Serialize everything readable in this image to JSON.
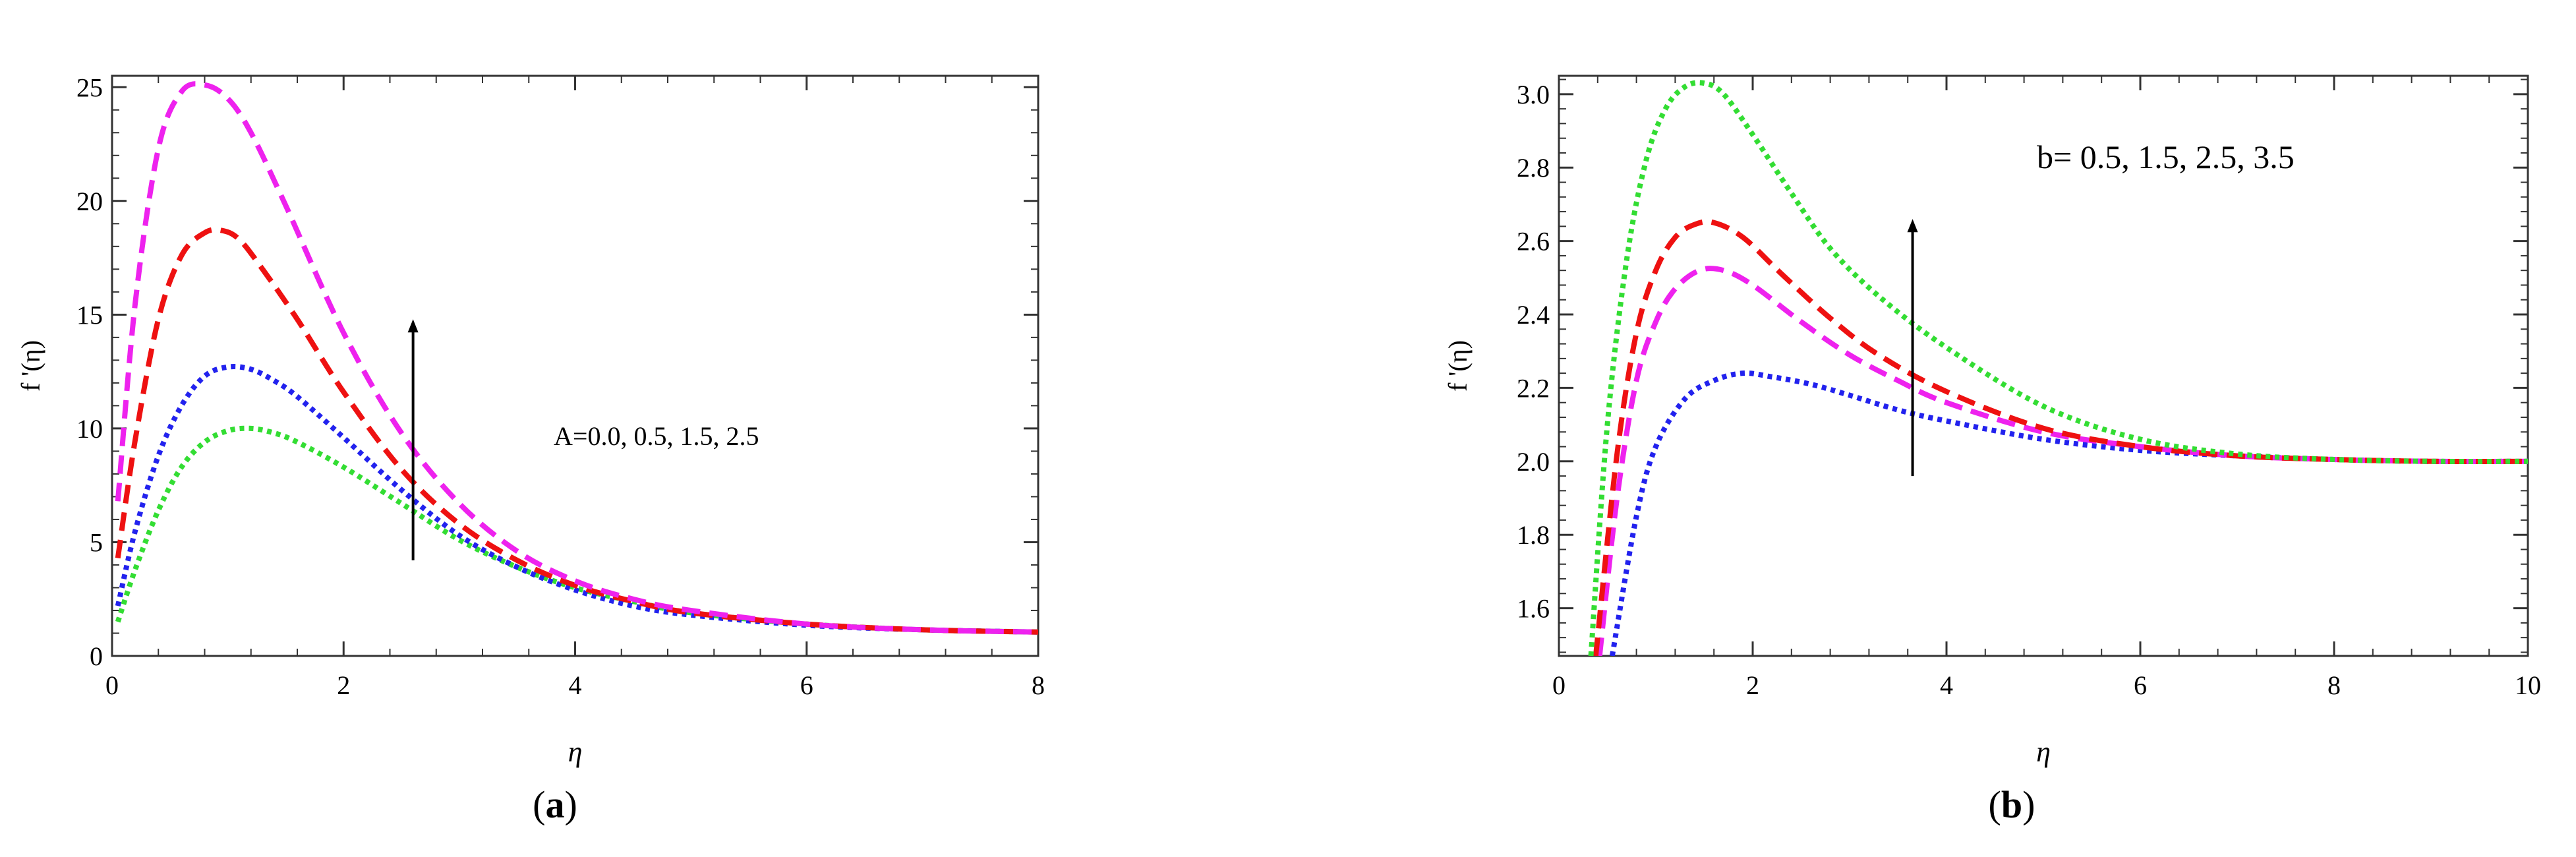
{
  "figure": {
    "panels": [
      {
        "caption_letter": "a",
        "caption_open": "(",
        "caption_close": ")"
      },
      {
        "caption_letter": "b",
        "caption_open": "(",
        "caption_close": ")"
      }
    ]
  },
  "chart_data": [
    {
      "type": "line",
      "title": "",
      "xlabel": "η",
      "ylabel": "f '(η)",
      "xlim": [
        0,
        8
      ],
      "ylim": [
        0,
        25.5
      ],
      "xticks": [
        0,
        2,
        4,
        6,
        8
      ],
      "yticks": [
        0,
        5,
        10,
        15,
        20,
        25
      ],
      "grid": false,
      "annotation": {
        "text": "A=0.0, 0.5, 1.5, 2.5",
        "arrow_x": 2.6,
        "arrow_from": 4.2,
        "arrow_to": 14.8
      },
      "series": [
        {
          "color": "#33dd33",
          "style": "dotted",
          "x": [
            0.05,
            0.2,
            0.4,
            0.6,
            0.8,
            1.0,
            1.2,
            1.4,
            1.6,
            2.0,
            2.5,
            3.0,
            3.5,
            4.0,
            4.5,
            5.0,
            6.0,
            7.0,
            8.0
          ],
          "y": [
            1.5,
            3.8,
            6.4,
            8.3,
            9.4,
            9.9,
            10.0,
            9.8,
            9.4,
            8.3,
            6.7,
            5.1,
            3.9,
            3.0,
            2.4,
            1.9,
            1.4,
            1.15,
            1.05
          ]
        },
        {
          "color": "#2222ee",
          "style": "dotted",
          "x": [
            0.05,
            0.2,
            0.4,
            0.6,
            0.8,
            1.0,
            1.2,
            1.4,
            1.6,
            2.0,
            2.5,
            3.0,
            3.5,
            4.0,
            4.5,
            5.0,
            6.0,
            7.0,
            8.0
          ],
          "y": [
            2.2,
            5.5,
            8.8,
            11.0,
            12.3,
            12.7,
            12.6,
            12.1,
            11.4,
            9.6,
            7.3,
            5.3,
            3.9,
            2.9,
            2.2,
            1.8,
            1.35,
            1.15,
            1.05
          ]
        },
        {
          "color": "#ee1111",
          "style": "dashed",
          "x": [
            0.05,
            0.2,
            0.4,
            0.6,
            0.8,
            0.95,
            1.1,
            1.3,
            1.6,
            2.0,
            2.5,
            3.0,
            3.5,
            4.0,
            4.5,
            5.0,
            6.0,
            7.0,
            8.0
          ],
          "y": [
            4.3,
            9.5,
            14.8,
            17.6,
            18.6,
            18.7,
            18.3,
            17.0,
            14.8,
            11.6,
            8.2,
            5.8,
            4.2,
            3.1,
            2.4,
            1.9,
            1.4,
            1.15,
            1.05
          ]
        },
        {
          "color": "#ee22ee",
          "style": "dashed",
          "x": [
            0.05,
            0.2,
            0.4,
            0.6,
            0.8,
            1.0,
            1.2,
            1.5,
            2.0,
            2.5,
            3.0,
            3.5,
            4.0,
            4.5,
            5.0,
            6.0,
            7.0,
            8.0
          ],
          "y": [
            6.8,
            15.5,
            22.3,
            24.8,
            25.1,
            24.5,
            23.0,
            19.8,
            14.2,
            9.8,
            6.7,
            4.6,
            3.3,
            2.5,
            2.0,
            1.4,
            1.15,
            1.05
          ]
        }
      ]
    },
    {
      "type": "line",
      "title": "",
      "xlabel": "η",
      "ylabel": "f '(η)",
      "xlim": [
        0,
        10
      ],
      "ylim": [
        1.47,
        3.05
      ],
      "xticks": [
        0,
        2,
        4,
        6,
        8,
        10
      ],
      "yticks": [
        1.6,
        1.8,
        2.0,
        2.2,
        2.4,
        2.6,
        2.8,
        3.0
      ],
      "grid": false,
      "annotation": {
        "text": "b= 0.5, 1.5, 2.5, 3.5",
        "arrow_x": 3.65,
        "arrow_from": 1.96,
        "arrow_to": 2.66
      },
      "series": [
        {
          "color": "#2222ee",
          "style": "dotted",
          "x": [
            0.55,
            0.8,
            1.0,
            1.3,
            1.6,
            1.9,
            2.2,
            2.6,
            3.0,
            3.5,
            4.0,
            5.0,
            6.0,
            7.0,
            8.0,
            9.0,
            10.0
          ],
          "y": [
            1.47,
            1.85,
            2.04,
            2.17,
            2.22,
            2.24,
            2.23,
            2.21,
            2.18,
            2.14,
            2.11,
            2.06,
            2.03,
            2.015,
            2.005,
            2.0,
            2.0
          ]
        },
        {
          "color": "#ee22ee",
          "style": "dashed",
          "x": [
            0.42,
            0.6,
            0.8,
            1.0,
            1.2,
            1.45,
            1.7,
            2.0,
            2.5,
            3.0,
            3.5,
            4.0,
            5.0,
            6.0,
            7.0,
            8.0,
            9.0,
            10.0
          ],
          "y": [
            1.47,
            1.9,
            2.22,
            2.38,
            2.47,
            2.52,
            2.52,
            2.48,
            2.38,
            2.29,
            2.22,
            2.16,
            2.08,
            2.04,
            2.015,
            2.005,
            2.0,
            2.0
          ]
        },
        {
          "color": "#ee1111",
          "style": "dashed",
          "x": [
            0.38,
            0.6,
            0.8,
            1.0,
            1.2,
            1.4,
            1.6,
            1.9,
            2.3,
            2.8,
            3.3,
            4.0,
            5.0,
            6.0,
            7.0,
            8.0,
            9.0,
            10.0
          ],
          "y": [
            1.47,
            2.02,
            2.35,
            2.52,
            2.61,
            2.645,
            2.65,
            2.61,
            2.51,
            2.39,
            2.29,
            2.19,
            2.09,
            2.04,
            2.015,
            2.005,
            2.0,
            2.0
          ]
        },
        {
          "color": "#33dd33",
          "style": "dotted",
          "x": [
            0.33,
            0.5,
            0.7,
            0.9,
            1.1,
            1.3,
            1.5,
            1.7,
            2.0,
            2.4,
            2.8,
            3.3,
            4.0,
            5.0,
            6.0,
            7.0,
            8.0,
            9.0,
            10.0
          ],
          "y": [
            1.47,
            2.1,
            2.55,
            2.82,
            2.96,
            3.02,
            3.03,
            3.0,
            2.89,
            2.73,
            2.58,
            2.45,
            2.31,
            2.15,
            2.06,
            2.02,
            2.005,
            2.0,
            2.0
          ]
        }
      ]
    }
  ]
}
